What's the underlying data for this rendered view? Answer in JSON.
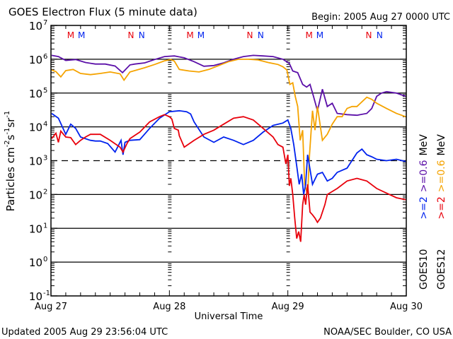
{
  "chart_data": {
    "type": "line",
    "title": "GOES Electron Flux (5 minute data)",
    "begin_label": "Begin: 2005 Aug 27 0000 UTC",
    "xlabel": "Universal Time",
    "ylabel": "Particles cm",
    "ylabel_parts": [
      "Particles cm",
      "-2",
      "s",
      "-1",
      "sr",
      "-1"
    ],
    "yscale": "log",
    "ylim": [
      0.1,
      10000000
    ],
    "y_ticks": [
      {
        "base": "10",
        "exp": "7",
        "value": 10000000
      },
      {
        "base": "10",
        "exp": "6",
        "value": 1000000
      },
      {
        "base": "10",
        "exp": "5",
        "value": 100000
      },
      {
        "base": "10",
        "exp": "4",
        "value": 10000
      },
      {
        "base": "10",
        "exp": "3",
        "value": 1000
      },
      {
        "base": "10",
        "exp": "2",
        "value": 100
      },
      {
        "base": "10",
        "exp": "1",
        "value": 10
      },
      {
        "base": "10",
        "exp": "0",
        "value": 1
      },
      {
        "base": "10",
        "exp": "-1",
        "value": 0.1
      }
    ],
    "xlim_hours": [
      0,
      72
    ],
    "x_ticks": [
      {
        "label": "Aug 27",
        "hour": 0
      },
      {
        "label": "Aug 28",
        "hour": 24
      },
      {
        "label": "Aug 29",
        "hour": 48
      },
      {
        "label": "Aug 30",
        "hour": 72
      }
    ],
    "grid": "horizontal lines at each decade; dashed line at 1000 threshold",
    "threshold": 1000,
    "markers": [
      {
        "label": "M",
        "hour": 4.0,
        "color": "#e8000b"
      },
      {
        "label": "M",
        "hour": 6.2,
        "color": "#0022ee"
      },
      {
        "label": "N",
        "hour": 16.2,
        "color": "#e8000b"
      },
      {
        "label": "N",
        "hour": 18.4,
        "color": "#0022ee"
      },
      {
        "label": "M",
        "hour": 28.2,
        "color": "#e8000b"
      },
      {
        "label": "M",
        "hour": 30.4,
        "color": "#0022ee"
      },
      {
        "label": "N",
        "hour": 40.3,
        "color": "#e8000b"
      },
      {
        "label": "N",
        "hour": 42.5,
        "color": "#0022ee"
      },
      {
        "label": "M",
        "hour": 52.3,
        "color": "#e8000b"
      },
      {
        "label": "M",
        "hour": 54.5,
        "color": "#0022ee"
      },
      {
        "label": "N",
        "hour": 64.4,
        "color": "#e8000b"
      },
      {
        "label": "N",
        "hour": 66.6,
        "color": "#0022ee"
      }
    ],
    "legend": {
      "position": "right-vertical",
      "columns": [
        {
          "satellite": "GOES10",
          "entries": [
            {
              "text": ">=2",
              "color": "#0022ee"
            },
            {
              "text": ">=0.6",
              "color": "#5b0fa8"
            },
            {
              "text": "MeV",
              "color": "#000000"
            }
          ]
        },
        {
          "satellite": "GOES12",
          "entries": [
            {
              "text": ">=2",
              "color": "#e8000b"
            },
            {
              "text": ">=0.6",
              "color": "#f5a300"
            },
            {
              "text": "MeV",
              "color": "#000000"
            }
          ]
        }
      ]
    },
    "series": [
      {
        "name": "GOES10 >=0.6 MeV",
        "color": "#5b0fa8",
        "hours": [
          0,
          1.5,
          3,
          5,
          7,
          9,
          11,
          13,
          14.5,
          16,
          17,
          19,
          21,
          23,
          25,
          27,
          29,
          31,
          33,
          35,
          37,
          39,
          41,
          43,
          45,
          47,
          48.3,
          49,
          50,
          51,
          51.8,
          52.5,
          53.2,
          54,
          55,
          56,
          57,
          58,
          60,
          62,
          64,
          65,
          66,
          67,
          68,
          70,
          72
        ],
        "values": [
          1300000,
          1200000,
          920000,
          980000,
          800000,
          720000,
          720000,
          630000,
          400000,
          680000,
          720000,
          780000,
          980000,
          1200000,
          1250000,
          1100000,
          850000,
          620000,
          650000,
          780000,
          1000000,
          1200000,
          1300000,
          1250000,
          1200000,
          1000000,
          750000,
          450000,
          400000,
          180000,
          150000,
          180000,
          80000,
          30000,
          130000,
          40000,
          50000,
          25000,
          23000,
          22000,
          25000,
          35000,
          80000,
          100000,
          110000,
          100000,
          80000
        ]
      },
      {
        "name": "GOES12 >=0.6 MeV",
        "color": "#f5a300",
        "hours": [
          0,
          1,
          2,
          3,
          4.5,
          6,
          8,
          10,
          12,
          14,
          14.8,
          16,
          19,
          21,
          23,
          24.3,
          25,
          26,
          28,
          30,
          32,
          34,
          36,
          38,
          40,
          42,
          44,
          46,
          47,
          47.8,
          48.4,
          49,
          49.5,
          50,
          50.5,
          51,
          51.4,
          52,
          52.4,
          53,
          53.5,
          54,
          55,
          56,
          57,
          58,
          59,
          60,
          61,
          62,
          63,
          64,
          65,
          66,
          68,
          70,
          72
        ],
        "values": [
          480000,
          430000,
          300000,
          460000,
          500000,
          380000,
          350000,
          380000,
          420000,
          370000,
          240000,
          420000,
          560000,
          700000,
          900000,
          980000,
          880000,
          500000,
          450000,
          420000,
          500000,
          650000,
          850000,
          1000000,
          1000000,
          950000,
          800000,
          700000,
          600000,
          480000,
          180000,
          200000,
          80000,
          40000,
          4000,
          8000,
          200,
          100,
          1500,
          30000,
          8000,
          40000,
          4000,
          6000,
          12000,
          20000,
          20000,
          35000,
          40000,
          40000,
          55000,
          75000,
          65000,
          50000,
          35000,
          25000,
          20000
        ]
      },
      {
        "name": "GOES10 >=2 MeV",
        "color": "#0022ee",
        "hours": [
          0,
          1.5,
          3,
          4,
          5,
          6,
          8,
          9,
          10,
          11.5,
          13,
          14.2,
          14.6,
          15,
          16,
          18,
          20,
          22,
          24,
          26,
          27.5,
          28.3,
          29,
          31,
          33,
          35,
          37,
          39,
          41,
          43,
          45,
          47,
          48,
          48.6,
          49.2,
          49.8,
          50.3,
          50.8,
          51.2,
          51.6,
          52,
          53,
          54,
          55,
          56,
          57,
          58,
          60,
          62,
          63,
          64,
          65,
          66,
          68,
          70,
          72
        ],
        "values": [
          25000,
          18000,
          6000,
          12000,
          9000,
          5000,
          4000,
          3800,
          3800,
          3200,
          1800,
          4000,
          1500,
          3500,
          4000,
          4200,
          9000,
          18000,
          28000,
          30000,
          28000,
          24000,
          14000,
          5000,
          3500,
          5000,
          4000,
          3000,
          4000,
          7000,
          11000,
          13000,
          16000,
          9000,
          3000,
          700,
          200,
          400,
          100,
          200,
          1500,
          200,
          400,
          450,
          250,
          300,
          450,
          600,
          1700,
          2200,
          1500,
          1300,
          1100,
          1000,
          1100,
          950
        ]
      },
      {
        "name": "GOES12 >=2 MeV",
        "color": "#e8000b",
        "hours": [
          0,
          1,
          1.5,
          2,
          3,
          4,
          5,
          6,
          7,
          8,
          10,
          12,
          14,
          14.6,
          15.4,
          16,
          18,
          20,
          22,
          23,
          24,
          24.5,
          25,
          25.8,
          26,
          27,
          29,
          31,
          33,
          35,
          37,
          39,
          41,
          43,
          45,
          46,
          47,
          47.6,
          48,
          48.3,
          48.6,
          49,
          49.4,
          49.8,
          50.2,
          50.6,
          51,
          51.3,
          51.6,
          52,
          52.5,
          53,
          53.5,
          54,
          54.6,
          55.5,
          56,
          58,
          60,
          62,
          64,
          66,
          68,
          70,
          72
        ],
        "values": [
          4500,
          6500,
          3500,
          7500,
          5000,
          4800,
          3000,
          4000,
          5000,
          6000,
          6000,
          4000,
          2500,
          1800,
          3200,
          4500,
          7000,
          14000,
          20000,
          23000,
          20000,
          17000,
          9000,
          8000,
          5500,
          2500,
          4000,
          6000,
          8000,
          12000,
          18000,
          20000,
          16000,
          9000,
          5000,
          3000,
          2500,
          800,
          1500,
          180,
          300,
          100,
          20,
          5,
          8,
          4,
          50,
          100,
          50,
          200,
          30,
          25,
          20,
          15,
          20,
          50,
          100,
          150,
          250,
          300,
          250,
          150,
          110,
          80,
          70
        ]
      }
    ]
  },
  "footer": {
    "updated": "Updated 2005 Aug 29 23:56:04 UTC",
    "credit": "NOAA/SEC Boulder, CO USA"
  }
}
